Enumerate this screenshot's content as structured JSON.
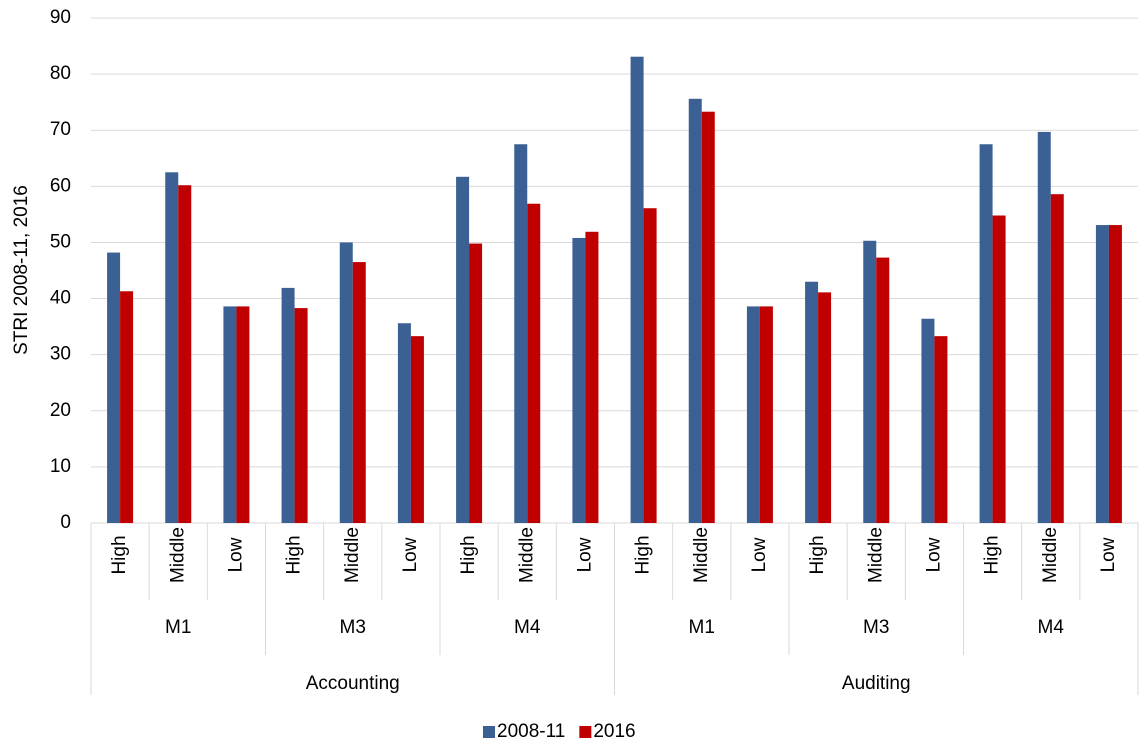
{
  "chart_data": {
    "type": "bar",
    "y_label": "STRI 2008-11, 2016",
    "category_levels": [
      [
        "High",
        "Middle",
        "Low",
        "High",
        "Middle",
        "Low",
        "High",
        "Middle",
        "Low",
        "High",
        "Middle",
        "Low",
        "High",
        "Middle",
        "Low",
        "High",
        "Middle",
        "Low"
      ],
      [
        "M1",
        "M3",
        "M4",
        "M1",
        "M3",
        "M4"
      ],
      [
        "Accounting",
        "Auditing"
      ]
    ],
    "series": [
      {
        "name": "2008-11",
        "color": "#3a6094",
        "values": [
          48.2,
          62.5,
          38.6,
          41.9,
          50,
          35.6,
          61.7,
          67.5,
          50.8,
          83.1,
          75.6,
          38.6,
          43,
          50.3,
          36.4,
          67.5,
          69.7,
          53.1
        ]
      },
      {
        "name": "2016",
        "color": "#c00000",
        "values": [
          41.3,
          60.2,
          38.6,
          38.3,
          46.5,
          33.3,
          49.8,
          56.9,
          51.9,
          56.1,
          73.3,
          38.6,
          41.1,
          47.3,
          33.3,
          54.8,
          58.6,
          53.1
        ]
      }
    ],
    "ylim": [
      0,
      90
    ],
    "yticks": [
      0,
      10,
      20,
      30,
      40,
      50,
      60,
      70,
      80,
      90
    ],
    "grid": true,
    "legend": "bottom"
  }
}
